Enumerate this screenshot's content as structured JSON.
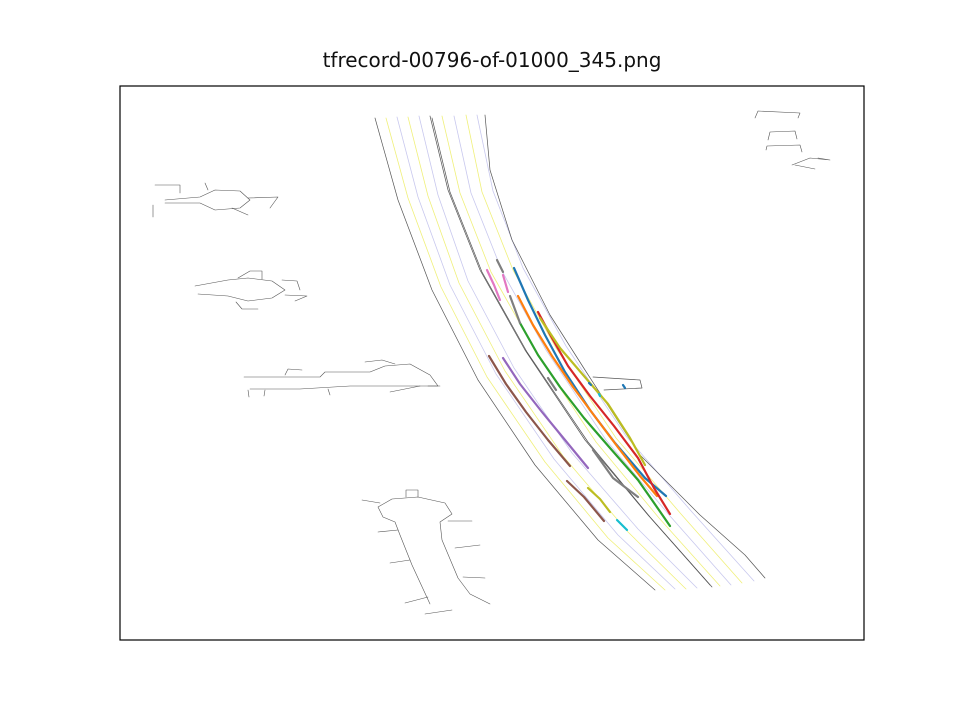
{
  "chart_data": {
    "type": "line",
    "title": "tfrecord-00796-of-01000_345.png",
    "xlabel": "",
    "ylabel": "",
    "axes_visible": false,
    "grid": false,
    "colors": {
      "roadgraph": "#555555",
      "lane_center": "#f0f07a",
      "lane_center_alt": "#c8c8ee"
    },
    "map": {
      "road_edges": [
        [
          [
            375,
            118
          ],
          [
            398,
            200
          ],
          [
            432,
            290
          ],
          [
            478,
            380
          ],
          [
            535,
            465
          ],
          [
            598,
            540
          ],
          [
            655,
            590
          ]
        ],
        [
          [
            430,
            116
          ],
          [
            448,
            190
          ],
          [
            480,
            270
          ],
          [
            525,
            350
          ],
          [
            585,
            440
          ],
          [
            648,
            515
          ],
          [
            710,
            585
          ]
        ],
        [
          [
            432,
            118
          ],
          [
            450,
            192
          ],
          [
            482,
            272
          ],
          [
            527,
            352
          ],
          [
            588,
            442
          ],
          [
            650,
            517
          ],
          [
            712,
            587
          ]
        ],
        [
          [
            485,
            115
          ],
          [
            490,
            170
          ],
          [
            512,
            240
          ],
          [
            550,
            315
          ],
          [
            585,
            370
          ],
          [
            640,
            455
          ],
          [
            700,
            515
          ],
          [
            745,
            555
          ],
          [
            765,
            578
          ]
        ],
        [
          [
            593,
            377
          ],
          [
            640,
            380
          ],
          [
            642,
            388
          ],
          [
            604,
            390
          ]
        ]
      ],
      "lane_centers": [
        [
          [
            386,
            118
          ],
          [
            408,
            198
          ],
          [
            441,
            287
          ],
          [
            487,
            377
          ],
          [
            545,
            462
          ],
          [
            608,
            538
          ],
          [
            665,
            590
          ]
        ],
        [
          [
            397,
            117
          ],
          [
            418,
            197
          ],
          [
            450,
            285
          ],
          [
            496,
            374
          ],
          [
            554,
            459
          ],
          [
            618,
            535
          ],
          [
            675,
            589
          ]
        ],
        [
          [
            408,
            117
          ],
          [
            428,
            196
          ],
          [
            459,
            283
          ],
          [
            505,
            371
          ],
          [
            563,
            456
          ],
          [
            628,
            532
          ],
          [
            686,
            589
          ]
        ],
        [
          [
            419,
            116
          ],
          [
            438,
            195
          ],
          [
            468,
            281
          ],
          [
            514,
            368
          ],
          [
            572,
            453
          ],
          [
            638,
            529
          ],
          [
            697,
            588
          ]
        ],
        [
          [
            442,
            116
          ],
          [
            460,
            193
          ],
          [
            491,
            272
          ],
          [
            536,
            352
          ],
          [
            596,
            442
          ],
          [
            659,
            518
          ],
          [
            720,
            586
          ]
        ],
        [
          [
            454,
            116
          ],
          [
            471,
            193
          ],
          [
            502,
            271
          ],
          [
            546,
            350
          ],
          [
            606,
            440
          ],
          [
            670,
            516
          ],
          [
            731,
            585
          ]
        ],
        [
          [
            466,
            115
          ],
          [
            482,
            192
          ],
          [
            513,
            270
          ],
          [
            556,
            348
          ],
          [
            616,
            438
          ],
          [
            681,
            514
          ],
          [
            742,
            583
          ]
        ],
        [
          [
            477,
            115
          ],
          [
            493,
            191
          ],
          [
            523,
            268
          ],
          [
            566,
            346
          ],
          [
            626,
            436
          ],
          [
            692,
            512
          ],
          [
            754,
            581
          ]
        ]
      ],
      "structures": [
        [
          [
            165,
            200
          ],
          [
            200,
            197
          ],
          [
            215,
            190
          ],
          [
            240,
            191
          ],
          [
            250,
            200
          ],
          [
            240,
            208
          ],
          [
            215,
            210
          ],
          [
            200,
            203
          ],
          [
            165,
            203
          ]
        ],
        [
          [
            155,
            185
          ],
          [
            180,
            185
          ],
          [
            180,
            193
          ]
        ],
        [
          [
            153,
            205
          ],
          [
            153,
            217
          ]
        ],
        [
          [
            248,
            198
          ],
          [
            278,
            197
          ],
          [
            270,
            208
          ]
        ],
        [
          [
            205,
            183
          ],
          [
            208,
            190
          ]
        ],
        [
          [
            232,
            208
          ],
          [
            248,
            215
          ]
        ],
        [
          [
            195,
            286
          ],
          [
            228,
            280
          ],
          [
            248,
            278
          ],
          [
            272,
            281
          ],
          [
            285,
            290
          ],
          [
            272,
            298
          ],
          [
            248,
            301
          ],
          [
            228,
            296
          ],
          [
            198,
            294
          ]
        ],
        [
          [
            238,
            278
          ],
          [
            250,
            271
          ],
          [
            262,
            271
          ],
          [
            262,
            279
          ]
        ],
        [
          [
            282,
            280
          ],
          [
            297,
            281
          ],
          [
            300,
            290
          ]
        ],
        [
          [
            285,
            295
          ],
          [
            307,
            296
          ],
          [
            295,
            301
          ]
        ],
        [
          [
            236,
            302
          ],
          [
            242,
            309
          ],
          [
            258,
            309
          ]
        ],
        [
          [
            244,
            377
          ],
          [
            320,
            377
          ],
          [
            325,
            372
          ],
          [
            370,
            372
          ],
          [
            385,
            366
          ],
          [
            410,
            364
          ],
          [
            430,
            375
          ],
          [
            438,
            386
          ],
          [
            350,
            386
          ],
          [
            300,
            389
          ],
          [
            250,
            389
          ]
        ],
        [
          [
            248,
            390
          ],
          [
            249,
            397
          ]
        ],
        [
          [
            265,
            390
          ],
          [
            264,
            396
          ]
        ],
        [
          [
            285,
            375
          ],
          [
            288,
            369
          ],
          [
            302,
            370
          ]
        ],
        [
          [
            328,
            389
          ],
          [
            330,
            395
          ]
        ],
        [
          [
            365,
            362
          ],
          [
            382,
            360
          ],
          [
            395,
            364
          ]
        ],
        [
          [
            390,
            392
          ],
          [
            420,
            386
          ]
        ],
        [
          [
            428,
            386
          ],
          [
            440,
            386
          ]
        ],
        [
          [
            430,
            604
          ],
          [
            412,
            565
          ],
          [
            400,
            535
          ],
          [
            395,
            522
          ],
          [
            383,
            517
          ],
          [
            378,
            507
          ],
          [
            392,
            499
          ],
          [
            418,
            497
          ],
          [
            445,
            503
          ],
          [
            452,
            514
          ],
          [
            440,
            522
          ],
          [
            442,
            540
          ],
          [
            458,
            578
          ],
          [
            470,
            594
          ],
          [
            490,
            604
          ]
        ],
        [
          [
            362,
            500
          ],
          [
            380,
            503
          ]
        ],
        [
          [
            378,
            532
          ],
          [
            398,
            530
          ]
        ],
        [
          [
            390,
            563
          ],
          [
            410,
            560
          ]
        ],
        [
          [
            405,
            603
          ],
          [
            428,
            597
          ]
        ],
        [
          [
            425,
            614
          ],
          [
            452,
            610
          ]
        ],
        [
          [
            448,
            521
          ],
          [
            472,
            521
          ]
        ],
        [
          [
            455,
            548
          ],
          [
            480,
            545
          ]
        ],
        [
          [
            463,
            577
          ],
          [
            485,
            578
          ]
        ],
        [
          [
            406,
            497
          ],
          [
            406,
            490
          ],
          [
            418,
            490
          ],
          [
            418,
            497
          ]
        ],
        [
          [
            755,
            118
          ],
          [
            758,
            111
          ],
          [
            800,
            113
          ],
          [
            798,
            118
          ]
        ],
        [
          [
            768,
            140
          ],
          [
            770,
            132
          ],
          [
            795,
            131
          ],
          [
            797,
            139
          ]
        ],
        [
          [
            766,
            150
          ],
          [
            767,
            146
          ],
          [
            800,
            145
          ],
          [
            802,
            152
          ]
        ],
        [
          [
            792,
            165
          ],
          [
            810,
            158
          ],
          [
            830,
            160
          ],
          [
            818,
            158
          ]
        ],
        [
          [
            795,
            165
          ],
          [
            815,
            169
          ]
        ]
      ]
    },
    "series": [
      {
        "color": "#1f77b4",
        "points": [
          [
            514,
            268
          ],
          [
            528,
            300
          ],
          [
            545,
            335
          ],
          [
            565,
            372
          ],
          [
            590,
            410
          ],
          [
            615,
            443
          ],
          [
            645,
            478
          ],
          [
            666,
            496
          ]
        ]
      },
      {
        "color": "#ff7f0e",
        "points": [
          [
            518,
            296
          ],
          [
            533,
            325
          ],
          [
            552,
            356
          ],
          [
            573,
            387
          ],
          [
            596,
            418
          ],
          [
            617,
            446
          ],
          [
            640,
            476
          ],
          [
            657,
            496
          ]
        ]
      },
      {
        "color": "#2ca02c",
        "points": [
          [
            520,
            323
          ],
          [
            538,
            355
          ],
          [
            560,
            387
          ],
          [
            584,
            418
          ],
          [
            610,
            448
          ],
          [
            638,
            480
          ],
          [
            652,
            500
          ],
          [
            670,
            526
          ]
        ]
      },
      {
        "color": "#d62728",
        "points": [
          [
            538,
            312
          ],
          [
            552,
            338
          ],
          [
            568,
            366
          ],
          [
            590,
            396
          ],
          [
            614,
            426
          ],
          [
            638,
            458
          ],
          [
            654,
            488
          ],
          [
            670,
            514
          ]
        ]
      },
      {
        "color": "#9467bd",
        "points": [
          [
            503,
            358
          ],
          [
            520,
            384
          ],
          [
            542,
            412
          ],
          [
            565,
            440
          ],
          [
            588,
            468
          ]
        ]
      },
      {
        "color": "#8c564b",
        "points": [
          [
            489,
            356
          ],
          [
            506,
            384
          ],
          [
            526,
            412
          ],
          [
            548,
            440
          ],
          [
            570,
            466
          ]
        ]
      },
      {
        "color": "#8c564b",
        "points": [
          [
            567,
            481
          ],
          [
            584,
            497
          ],
          [
            604,
            521
          ]
        ]
      },
      {
        "color": "#e377c2",
        "points": [
          [
            487,
            270
          ],
          [
            494,
            285
          ],
          [
            500,
            300
          ]
        ]
      },
      {
        "color": "#e377c2",
        "points": [
          [
            503,
            275
          ],
          [
            508,
            292
          ]
        ]
      },
      {
        "color": "#7f7f7f",
        "points": [
          [
            497,
            260
          ],
          [
            503,
            272
          ]
        ]
      },
      {
        "color": "#7f7f7f",
        "points": [
          [
            510,
            296
          ],
          [
            520,
            323
          ]
        ]
      },
      {
        "color": "#7f7f7f",
        "points": [
          [
            548,
            378
          ],
          [
            556,
            390
          ]
        ]
      },
      {
        "color": "#7f7f7f",
        "points": [
          [
            593,
            450
          ],
          [
            613,
            478
          ],
          [
            638,
            497
          ]
        ]
      },
      {
        "color": "#bcbd22",
        "points": [
          [
            540,
            318
          ],
          [
            560,
            348
          ],
          [
            584,
            376
          ],
          [
            608,
            404
          ],
          [
            630,
            438
          ],
          [
            645,
            465
          ]
        ]
      },
      {
        "color": "#bcbd22",
        "points": [
          [
            588,
            488
          ],
          [
            600,
            499
          ],
          [
            610,
            512
          ]
        ]
      },
      {
        "color": "#17becf",
        "points": [
          [
            617,
            520
          ],
          [
            627,
            530
          ]
        ]
      },
      {
        "color": "#1f77b4",
        "points": [
          [
            589,
            383
          ],
          [
            591,
            385
          ]
        ]
      },
      {
        "color": "#1f77b4",
        "points": [
          [
            623,
            385
          ],
          [
            625,
            388
          ]
        ]
      },
      {
        "color": "#17becf",
        "points": [
          [
            599,
            394
          ],
          [
            600,
            396
          ]
        ]
      }
    ]
  }
}
